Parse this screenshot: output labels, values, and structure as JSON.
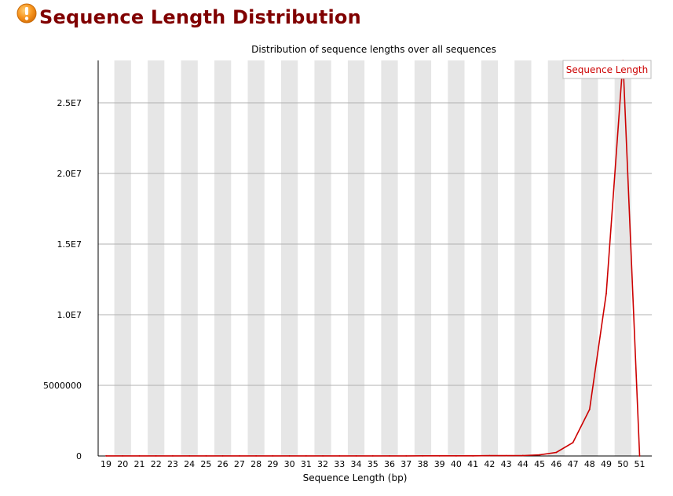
{
  "header": {
    "title": "Sequence Length Distribution",
    "status_icon": "warning-icon",
    "status_color": "#f7941d"
  },
  "chart_data": {
    "type": "line",
    "title": "Distribution of sequence lengths over all sequences",
    "xlabel": "Sequence Length (bp)",
    "ylabel": "",
    "categories": [
      "19",
      "20",
      "21",
      "22",
      "23",
      "24",
      "25",
      "26",
      "27",
      "28",
      "29",
      "30",
      "31",
      "32",
      "33",
      "34",
      "35",
      "36",
      "37",
      "38",
      "39",
      "40",
      "41",
      "42",
      "43",
      "44",
      "45",
      "46",
      "47",
      "48",
      "49",
      "50",
      "51"
    ],
    "series": [
      {
        "name": "Sequence Length",
        "color": "#cc0000",
        "values": [
          5000,
          5000,
          5000,
          5000,
          5000,
          5000,
          5000,
          5000,
          5000,
          5000,
          5000,
          5000,
          5000,
          5000,
          5000,
          5000,
          5000,
          5000,
          5000,
          10000,
          10000,
          10000,
          10000,
          20000,
          20000,
          30000,
          80000,
          250000,
          950000,
          3300000,
          11500000,
          28000000,
          0
        ]
      }
    ],
    "ylim": [
      0,
      28000000
    ],
    "yticks": [
      0,
      5000000,
      10000000,
      15000000,
      20000000,
      25000000
    ],
    "ytick_labels": [
      "0",
      "5000000",
      "1.0E7",
      "1.5E7",
      "2.0E7",
      "2.5E7"
    ],
    "grid": true,
    "alternating_bands": true,
    "band_color": "#e6e6e6",
    "legend_position": "top-right"
  }
}
